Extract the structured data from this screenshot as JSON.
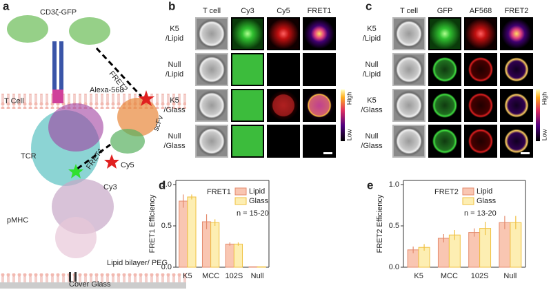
{
  "panel_a": {
    "label": "a",
    "texts": [
      "CD3ζ-GFP",
      "FRET2",
      "T Cell",
      "Alexa-568",
      "scFv",
      "TCR",
      "Cy5",
      "FRET1",
      "Cy3",
      "pMHC",
      "Lipid bilayer/ PEG",
      "Cover Glass"
    ]
  },
  "panel_b": {
    "label": "b",
    "columns": [
      "T cell",
      "Cy3",
      "Cy5",
      "FRET1"
    ],
    "rows": [
      [
        "K5",
        "/Lipid"
      ],
      [
        "Null",
        "/Lipid"
      ],
      [
        "K5",
        "/Glass"
      ],
      [
        "Null",
        "/Glass"
      ]
    ],
    "colorbar": [
      "High",
      "Low"
    ]
  },
  "panel_c": {
    "label": "c",
    "columns": [
      "T cell",
      "GFP",
      "AF568",
      "FRET2"
    ],
    "rows": [
      [
        "K5",
        "/Lipid"
      ],
      [
        "Null",
        "/Lipid"
      ],
      [
        "K5",
        "/Glass"
      ],
      [
        "Null",
        "/Glass"
      ]
    ],
    "colorbar": [
      "High",
      "Low"
    ]
  },
  "chart_data": [
    {
      "type": "bar",
      "label": "d",
      "title": "FRET1",
      "ylabel": "FRET1 Efficiency",
      "annotation": "n = 15-20",
      "categories": [
        "K5",
        "MCC",
        "102S",
        "Null"
      ],
      "series": [
        {
          "name": "Lipid",
          "color": "#f9c6b2",
          "edgecolor": "#e48a6c",
          "values": [
            0.8,
            0.55,
            0.28,
            0.005
          ],
          "errors": [
            0.08,
            0.09,
            0.02,
            0.002
          ]
        },
        {
          "name": "Glass",
          "color": "#fdeeb2",
          "edgecolor": "#f0c040",
          "values": [
            0.85,
            0.54,
            0.28,
            0.005
          ],
          "errors": [
            0.03,
            0.04,
            0.02,
            0.002
          ]
        }
      ],
      "ylim": [
        0,
        1.05
      ],
      "yticks": [
        {
          "value": 0,
          "label": "0.0"
        },
        {
          "value": 0.5,
          "label": "0.5"
        },
        {
          "value": 1,
          "label": "1.0"
        }
      ]
    },
    {
      "type": "bar",
      "label": "e",
      "title": "FRET2",
      "ylabel": "FRET2 Efficiency",
      "annotation": "n = 13-20",
      "categories": [
        "K5",
        "MCC",
        "102S",
        "Null"
      ],
      "series": [
        {
          "name": "Lipid",
          "color": "#f9c6b2",
          "edgecolor": "#e48a6c",
          "values": [
            0.21,
            0.35,
            0.42,
            0.54
          ],
          "errors": [
            0.04,
            0.05,
            0.05,
            0.08
          ]
        },
        {
          "name": "Glass",
          "color": "#fdeeb2",
          "edgecolor": "#f0c040",
          "values": [
            0.24,
            0.39,
            0.47,
            0.54
          ],
          "errors": [
            0.04,
            0.06,
            0.08,
            0.08
          ]
        }
      ],
      "ylim": [
        0,
        1.05
      ],
      "yticks": [
        {
          "value": 0,
          "label": "0.0"
        },
        {
          "value": 0.5,
          "label": "0.5"
        },
        {
          "value": 1,
          "label": "1.0"
        }
      ]
    }
  ]
}
